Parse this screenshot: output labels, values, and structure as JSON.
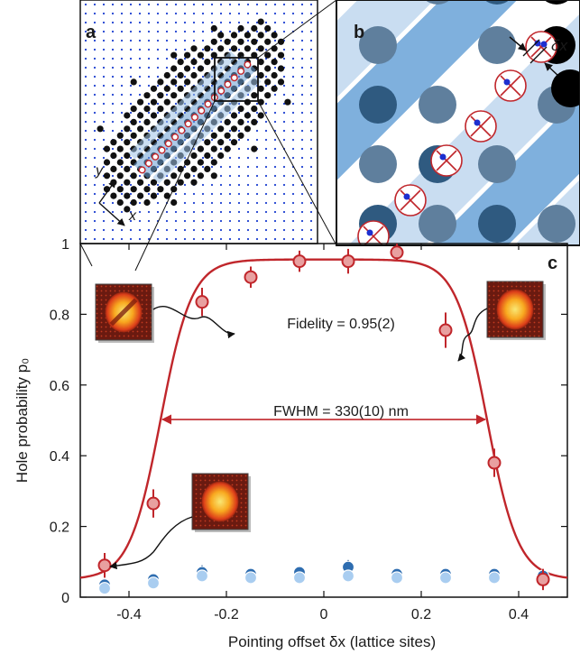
{
  "panels": {
    "a": {
      "letter": "a",
      "axis_x": "x",
      "axis_y": "y"
    },
    "b": {
      "letter": "b",
      "offset_label": "δx"
    },
    "c": {
      "letter": "c"
    }
  },
  "annotations": {
    "fidelity": "Fidelity = 0.95(2)",
    "fwhm": "FWHM = 330(10) nm"
  },
  "colors": {
    "fit_line": "#c0262b",
    "hole_marker_fill": "#e8a0a0",
    "hole_marker_edge": "#c0262b",
    "bg_marker_dark": "#2e6db0",
    "bg_marker_light": "#a9cdf0",
    "atom": "#111111",
    "lattice_dot": "#1d3fd0"
  },
  "chart_data": {
    "type": "scatter",
    "xlabel": "Pointing offset δx (lattice sites)",
    "ylabel": "Hole probability p₀",
    "xlim": [
      -0.5,
      0.5
    ],
    "ylim": [
      0,
      1
    ],
    "xticks": [
      -0.4,
      -0.2,
      0,
      0.2,
      0.4
    ],
    "xtick_labels": [
      "-0.4",
      "-0.2",
      "0",
      "0.2",
      "0.4"
    ],
    "yticks": [
      0,
      0.2,
      0.4,
      0.6,
      0.8,
      1
    ],
    "ytick_labels": [
      "0",
      "0.2",
      "0.4",
      "0.6",
      "0.8",
      "1"
    ],
    "series": [
      {
        "x": [
          -0.45,
          -0.35,
          -0.25,
          -0.15,
          -0.05,
          0.05,
          0.15,
          0.25,
          0.35,
          0.45
        ],
        "y": [
          0.09,
          0.265,
          0.835,
          0.905,
          0.95,
          0.95,
          0.975,
          0.755,
          0.38,
          0.05
        ],
        "err": [
          0.035,
          0.04,
          0.04,
          0.03,
          0.03,
          0.035,
          0.025,
          0.05,
          0.04,
          0.03
        ]
      },
      {
        "x": [
          -0.45,
          -0.35,
          -0.25,
          -0.15,
          -0.05,
          0.05,
          0.15,
          0.25,
          0.35,
          0.45
        ],
        "y": [
          0.035,
          0.05,
          0.07,
          0.065,
          0.07,
          0.085,
          0.065,
          0.065,
          0.065,
          0.06
        ],
        "err": [
          0.015,
          0.015,
          0.02,
          0.015,
          0.015,
          0.02,
          0.015,
          0.015,
          0.015,
          0.015
        ]
      },
      {
        "x": [
          -0.45,
          -0.35,
          -0.25,
          -0.15,
          -0.05,
          0.05,
          0.15,
          0.25,
          0.35,
          0.45
        ],
        "y": [
          0.025,
          0.04,
          0.06,
          0.055,
          0.055,
          0.06,
          0.055,
          0.055,
          0.055,
          0.05
        ],
        "err": [
          0.01,
          0.01,
          0.015,
          0.01,
          0.01,
          0.015,
          0.01,
          0.01,
          0.01,
          0.01
        ]
      }
    ],
    "fit": {
      "type": "plateau",
      "amplitude": 0.955,
      "offset": 0.05,
      "center": 0.0,
      "full_width_half_max": 0.67
    },
    "grid": false,
    "legend": "none"
  }
}
